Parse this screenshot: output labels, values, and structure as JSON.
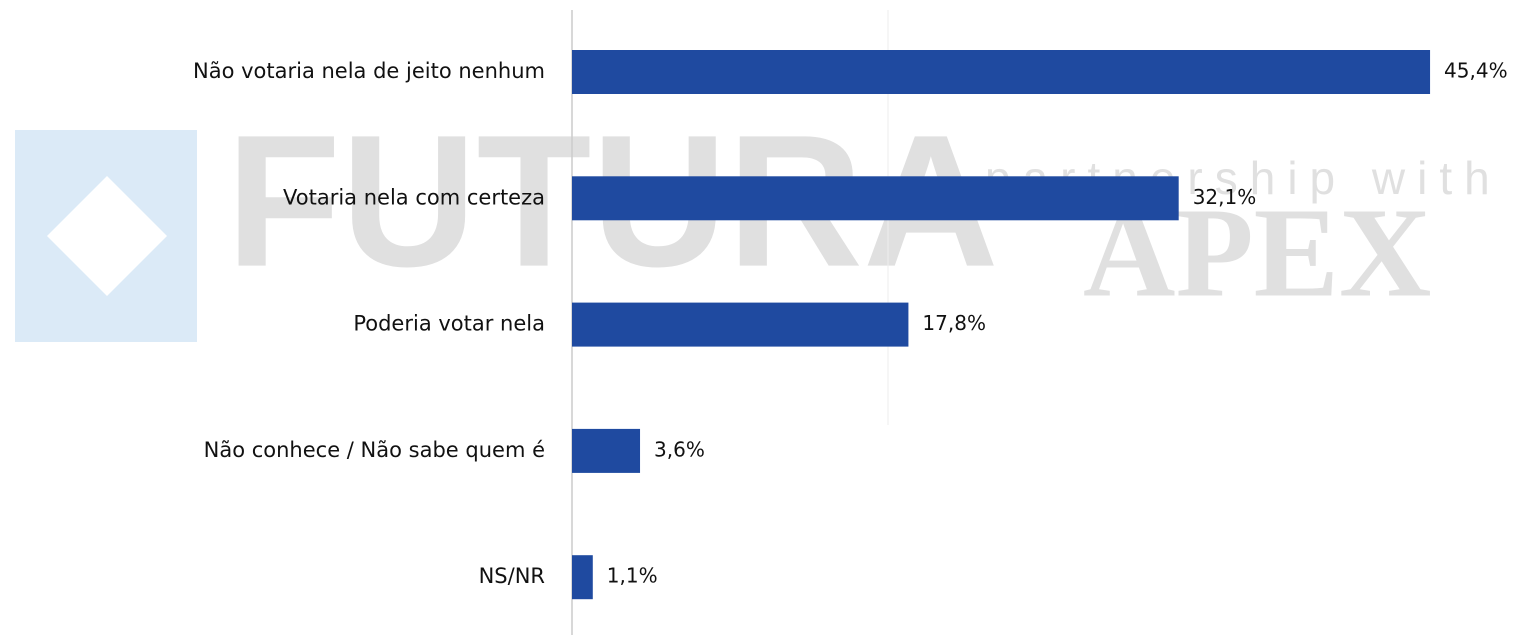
{
  "chart_data": {
    "type": "bar",
    "orientation": "horizontal",
    "categories": [
      "Não votaria nela de jeito nenhum",
      "Votaria nela com certeza",
      "Poderia votar nela",
      "Não conhece / Não sabe quem é",
      "NS/NR"
    ],
    "values": [
      45.4,
      32.1,
      17.8,
      3.6,
      1.1
    ],
    "value_labels": [
      "45,4%",
      "32,1%",
      "17,8%",
      "3,6%",
      "1,1%"
    ],
    "color": "#1f4aa0"
  },
  "watermark": {
    "left": "FUTURA",
    "right_top": "partnership with",
    "right": "APEX"
  }
}
